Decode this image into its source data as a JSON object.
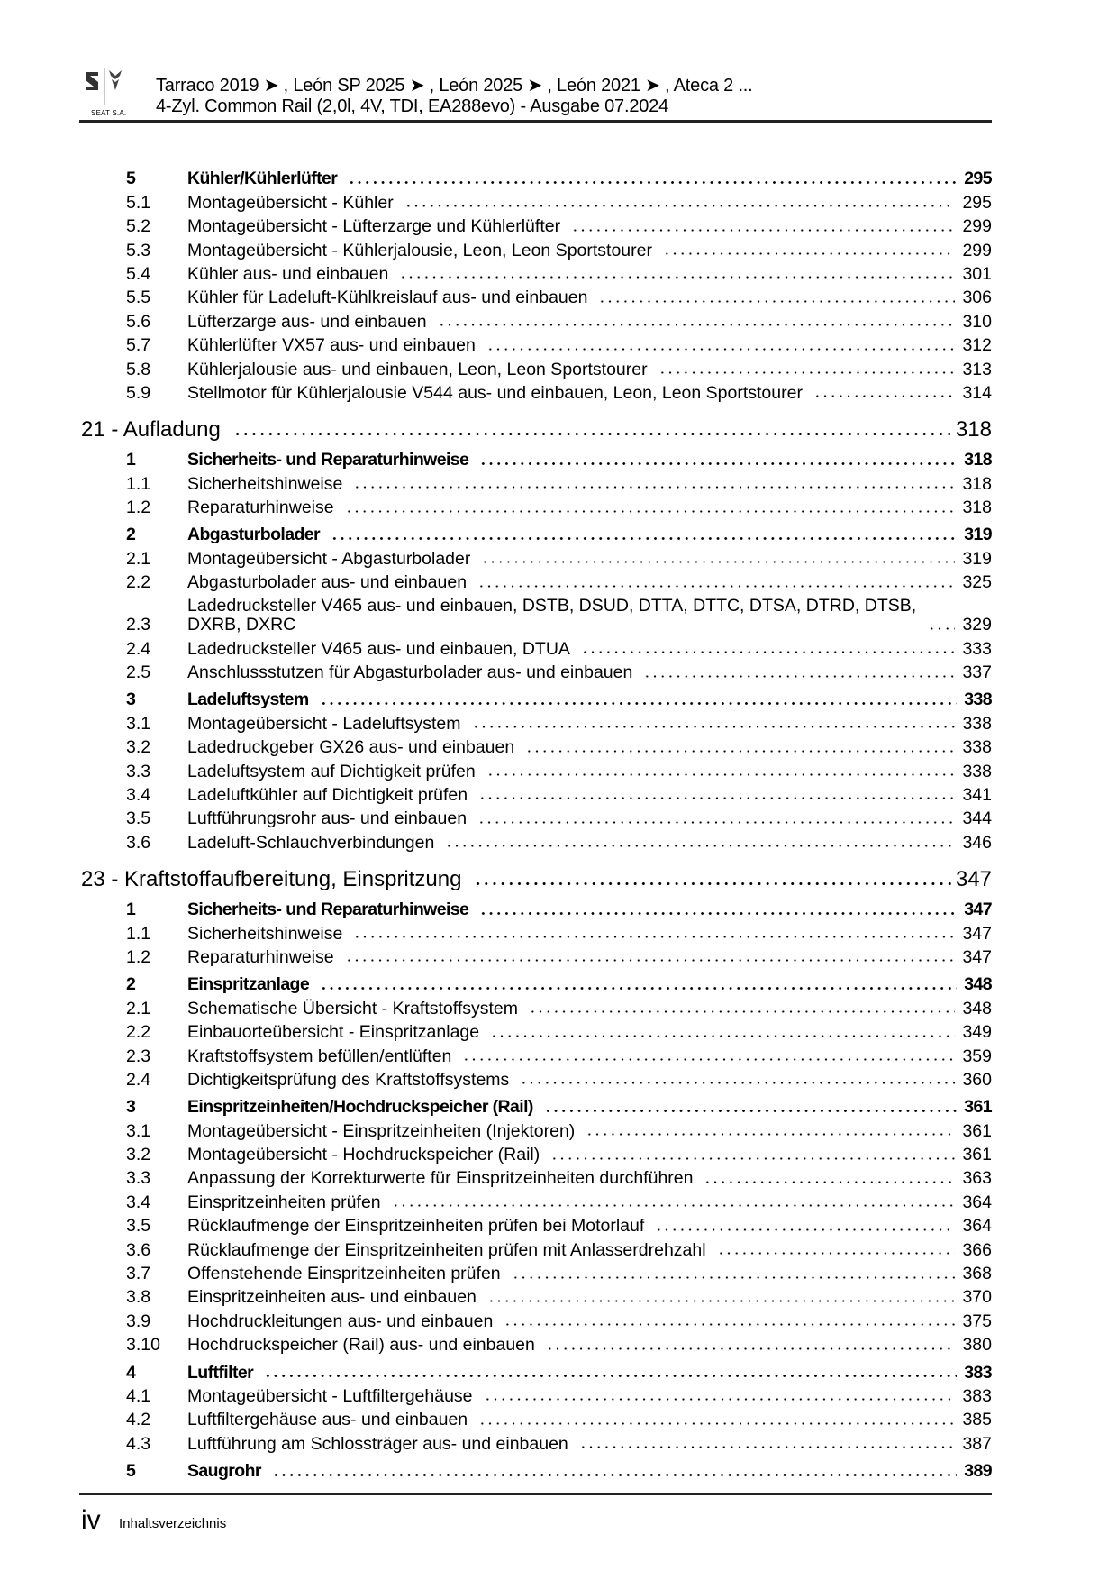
{
  "header": {
    "line1": "Tarraco 2019 ➤ , León SP 2025 ➤ , León 2025 ➤ , León 2021 ➤ , Ateca 2 ...",
    "line2": "4-Zyl. Common Rail (2,0l, 4V, TDI, EA288evo) - Ausgabe 07.2024",
    "logo_text": "SEAT S.A."
  },
  "footer": {
    "page_number": "iv",
    "label": "Inhaltsverzeichnis"
  },
  "toc": [
    {
      "type": "sec",
      "num": "5",
      "title": "Kühler/Kühlerlüfter",
      "page": "295"
    },
    {
      "type": "item",
      "num": "5.1",
      "title": "Montageübersicht - Kühler",
      "page": "295"
    },
    {
      "type": "item",
      "num": "5.2",
      "title": "Montageübersicht - Lüfterzarge und Kühlerlüfter",
      "page": "299"
    },
    {
      "type": "item",
      "num": "5.3",
      "title": "Montageübersicht - Kühlerjalousie, Leon, Leon Sportstourer",
      "page": "299"
    },
    {
      "type": "item",
      "num": "5.4",
      "title": "Kühler aus- und einbauen",
      "page": "301"
    },
    {
      "type": "item",
      "num": "5.5",
      "title": "Kühler für Ladeluft-Kühlkreislauf aus- und einbauen",
      "page": "306"
    },
    {
      "type": "item",
      "num": "5.6",
      "title": "Lüfterzarge aus- und einbauen",
      "page": "310"
    },
    {
      "type": "item",
      "num": "5.7",
      "title": "Kühlerlüfter VX57 aus- und einbauen",
      "page": "312"
    },
    {
      "type": "item",
      "num": "5.8",
      "title": "Kühlerjalousie aus- und einbauen, Leon, Leon Sportstourer",
      "page": "313"
    },
    {
      "type": "item",
      "num": "5.9",
      "title": "Stellmotor für Kühlerjalousie V544 aus- und einbauen, Leon, Leon Sportstourer",
      "page": "314"
    },
    {
      "type": "chap",
      "num": "",
      "title": "21 - Aufladung",
      "page": "318"
    },
    {
      "type": "sec",
      "num": "1",
      "title": "Sicherheits- und Reparaturhinweise",
      "page": "318"
    },
    {
      "type": "item",
      "num": "1.1",
      "title": "Sicherheitshinweise",
      "page": "318"
    },
    {
      "type": "item",
      "num": "1.2",
      "title": "Reparaturhinweise",
      "page": "318"
    },
    {
      "type": "sec",
      "num": "2",
      "title": "Abgasturbolader",
      "page": "319"
    },
    {
      "type": "item",
      "num": "2.1",
      "title": "Montageübersicht - Abgasturbolader",
      "page": "319"
    },
    {
      "type": "item",
      "num": "2.2",
      "title": "Abgasturbolader aus- und einbauen",
      "page": "325"
    },
    {
      "type": "wrap",
      "num": "2.3",
      "title": "Ladedrucksteller V465 aus- und einbauen, DSTB, DSUD, DTTA, DTTC, DTSA, DTRD, DTSB, DXRB, DXRC",
      "page": "329"
    },
    {
      "type": "item",
      "num": "2.4",
      "title": "Ladedrucksteller V465 aus- und einbauen, DTUA",
      "page": "333"
    },
    {
      "type": "item",
      "num": "2.5",
      "title": "Anschlussstutzen für Abgasturbolader aus- und einbauen",
      "page": "337"
    },
    {
      "type": "sec",
      "num": "3",
      "title": "Ladeluftsystem",
      "page": "338"
    },
    {
      "type": "item",
      "num": "3.1",
      "title": "Montageübersicht - Ladeluftsystem",
      "page": "338"
    },
    {
      "type": "item",
      "num": "3.2",
      "title": "Ladedruckgeber GX26 aus- und einbauen",
      "page": "338"
    },
    {
      "type": "item",
      "num": "3.3",
      "title": "Ladeluftsystem auf Dichtigkeit prüfen",
      "page": "338"
    },
    {
      "type": "item",
      "num": "3.4",
      "title": "Ladeluftkühler auf Dichtigkeit prüfen",
      "page": "341"
    },
    {
      "type": "item",
      "num": "3.5",
      "title": "Luftführungsrohr aus- und einbauen",
      "page": "344"
    },
    {
      "type": "item",
      "num": "3.6",
      "title": "Ladeluft-Schlauchverbindungen",
      "page": "346"
    },
    {
      "type": "chap",
      "num": "",
      "title": "23 - Kraftstoffaufbereitung, Einspritzung",
      "page": "347"
    },
    {
      "type": "sec",
      "num": "1",
      "title": "Sicherheits- und Reparaturhinweise",
      "page": "347"
    },
    {
      "type": "item",
      "num": "1.1",
      "title": "Sicherheitshinweise",
      "page": "347"
    },
    {
      "type": "item",
      "num": "1.2",
      "title": "Reparaturhinweise",
      "page": "347"
    },
    {
      "type": "sec",
      "num": "2",
      "title": "Einspritzanlage",
      "page": "348"
    },
    {
      "type": "item",
      "num": "2.1",
      "title": "Schematische Übersicht - Kraftstoffsystem",
      "page": "348"
    },
    {
      "type": "item",
      "num": "2.2",
      "title": "Einbauorteübersicht - Einspritzanlage",
      "page": "349"
    },
    {
      "type": "item",
      "num": "2.3",
      "title": "Kraftstoffsystem befüllen/entlüften",
      "page": "359"
    },
    {
      "type": "item",
      "num": "2.4",
      "title": "Dichtigkeitsprüfung des Kraftstoffsystems",
      "page": "360"
    },
    {
      "type": "sec",
      "num": "3",
      "title": "Einspritzeinheiten/Hochdruckspeicher (Rail)",
      "page": "361"
    },
    {
      "type": "item",
      "num": "3.1",
      "title": "Montageübersicht - Einspritzeinheiten (Injektoren)",
      "page": "361"
    },
    {
      "type": "item",
      "num": "3.2",
      "title": "Montageübersicht - Hochdruckspeicher (Rail)",
      "page": "361"
    },
    {
      "type": "item",
      "num": "3.3",
      "title": "Anpassung der Korrekturwerte für Einspritzeinheiten durchführen",
      "page": "363"
    },
    {
      "type": "item",
      "num": "3.4",
      "title": "Einspritzeinheiten prüfen",
      "page": "364"
    },
    {
      "type": "item",
      "num": "3.5",
      "title": "Rücklaufmenge der Einspritzeinheiten prüfen bei Motorlauf",
      "page": "364"
    },
    {
      "type": "item",
      "num": "3.6",
      "title": "Rücklaufmenge der Einspritzeinheiten prüfen mit Anlasserdrehzahl",
      "page": "366"
    },
    {
      "type": "item",
      "num": "3.7",
      "title": "Offenstehende Einspritzeinheiten prüfen",
      "page": "368"
    },
    {
      "type": "item",
      "num": "3.8",
      "title": "Einspritzeinheiten aus- und einbauen",
      "page": "370"
    },
    {
      "type": "item",
      "num": "3.9",
      "title": "Hochdruckleitungen aus- und einbauen",
      "page": "375"
    },
    {
      "type": "item",
      "num": "3.10",
      "title": "Hochdruckspeicher (Rail) aus- und einbauen",
      "page": "380"
    },
    {
      "type": "sec",
      "num": "4",
      "title": "Luftfilter",
      "page": "383"
    },
    {
      "type": "item",
      "num": "4.1",
      "title": "Montageübersicht - Luftfiltergehäuse",
      "page": "383"
    },
    {
      "type": "item",
      "num": "4.2",
      "title": "Luftfiltergehäuse aus- und einbauen",
      "page": "385"
    },
    {
      "type": "item",
      "num": "4.3",
      "title": "Luftführung am Schlossträger aus- und einbauen",
      "page": "387"
    },
    {
      "type": "sec",
      "num": "5",
      "title": "Saugrohr",
      "page": "389"
    }
  ]
}
